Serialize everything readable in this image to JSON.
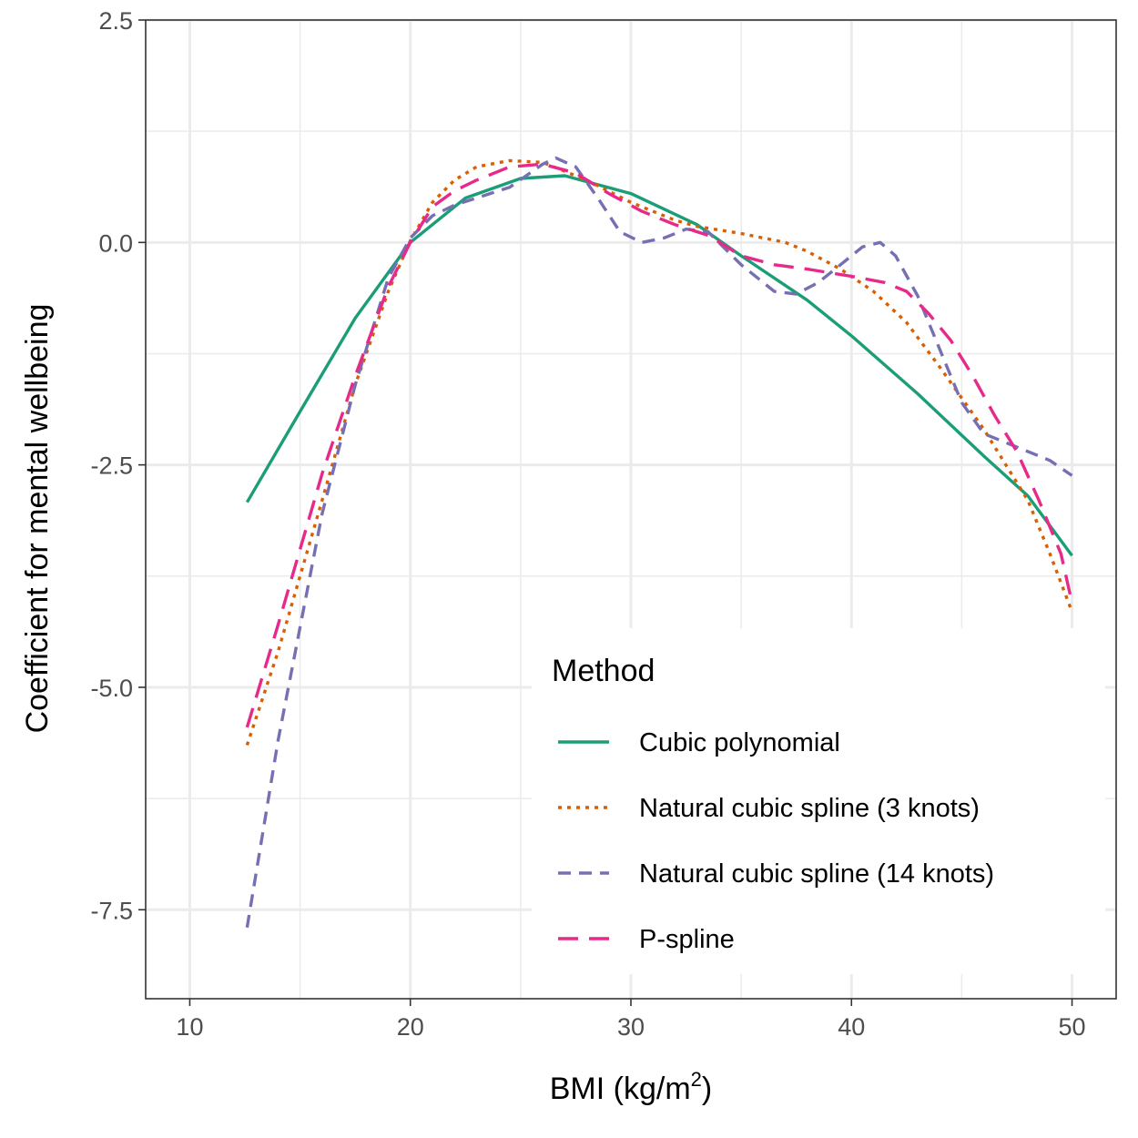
{
  "chart_data": {
    "type": "line",
    "xlabel_main": "BMI (kg/m",
    "xlabel_sup": "2",
    "xlabel_end": ")",
    "ylabel": "Coefficient for mental wellbeing",
    "xlim": [
      8,
      52
    ],
    "ylim": [
      -8.5,
      2.5
    ],
    "x_ticks": [
      10,
      20,
      30,
      40,
      50
    ],
    "x_tick_labels": [
      "10",
      "20",
      "30",
      "40",
      "50"
    ],
    "y_ticks": [
      2.5,
      0,
      -2.5,
      -5,
      -7.5
    ],
    "y_tick_labels": [
      "2.5",
      "0.0",
      "-2.5",
      "-5.0",
      "-7.5"
    ],
    "grid": true,
    "legend": {
      "title": "Method",
      "position": "bottom-right"
    },
    "series": [
      {
        "name": "Cubic polynomial",
        "color": "#1b9e77",
        "style": "solid",
        "points": [
          [
            12.6,
            -2.92
          ],
          [
            15,
            -1.9
          ],
          [
            17.5,
            -0.85
          ],
          [
            20,
            0.0
          ],
          [
            22.5,
            0.5
          ],
          [
            25,
            0.72
          ],
          [
            27,
            0.75
          ],
          [
            30,
            0.55
          ],
          [
            33,
            0.2
          ],
          [
            35,
            -0.15
          ],
          [
            38,
            -0.65
          ],
          [
            40,
            -1.05
          ],
          [
            43,
            -1.7
          ],
          [
            46,
            -2.4
          ],
          [
            48,
            -2.85
          ],
          [
            50,
            -3.52
          ]
        ]
      },
      {
        "name": "Natural cubic spline (3 knots)",
        "color": "#d95f02",
        "style": "dotted",
        "points": [
          [
            12.6,
            -5.65
          ],
          [
            14,
            -4.6
          ],
          [
            16,
            -2.9
          ],
          [
            17.5,
            -1.6
          ],
          [
            19,
            -0.55
          ],
          [
            20,
            0.02
          ],
          [
            21,
            0.45
          ],
          [
            22,
            0.7
          ],
          [
            23,
            0.85
          ],
          [
            24.5,
            0.92
          ],
          [
            26,
            0.9
          ],
          [
            28,
            0.7
          ],
          [
            30,
            0.45
          ],
          [
            32,
            0.25
          ],
          [
            33,
            0.18
          ],
          [
            35,
            0.1
          ],
          [
            37,
            0.0
          ],
          [
            38,
            -0.1
          ],
          [
            39.5,
            -0.3
          ],
          [
            41,
            -0.55
          ],
          [
            42.5,
            -0.9
          ],
          [
            44,
            -1.4
          ],
          [
            46,
            -2.1
          ],
          [
            48,
            -2.9
          ],
          [
            49,
            -3.5
          ],
          [
            50,
            -4.15
          ]
        ]
      },
      {
        "name": "Natural cubic spline (14 knots)",
        "color": "#7570b3",
        "style": "dashed",
        "points": [
          [
            12.6,
            -7.7
          ],
          [
            14,
            -5.6
          ],
          [
            16,
            -3.05
          ],
          [
            17.5,
            -1.6
          ],
          [
            19,
            -0.4
          ],
          [
            20,
            0.05
          ],
          [
            21,
            0.3
          ],
          [
            22,
            0.42
          ],
          [
            23,
            0.5
          ],
          [
            24.5,
            0.62
          ],
          [
            26,
            0.88
          ],
          [
            26.6,
            0.95
          ],
          [
            27.5,
            0.85
          ],
          [
            28.5,
            0.5
          ],
          [
            29.5,
            0.12
          ],
          [
            30.5,
            0.0
          ],
          [
            31.5,
            0.05
          ],
          [
            32.5,
            0.15
          ],
          [
            33.5,
            0.12
          ],
          [
            35,
            -0.25
          ],
          [
            36.5,
            -0.55
          ],
          [
            37.5,
            -0.58
          ],
          [
            38.5,
            -0.45
          ],
          [
            39.5,
            -0.25
          ],
          [
            40.5,
            -0.05
          ],
          [
            41.3,
            0.0
          ],
          [
            42,
            -0.15
          ],
          [
            43,
            -0.6
          ],
          [
            44,
            -1.2
          ],
          [
            45,
            -1.8
          ],
          [
            46,
            -2.15
          ],
          [
            47.5,
            -2.3
          ],
          [
            49,
            -2.45
          ],
          [
            50,
            -2.62
          ]
        ]
      },
      {
        "name": "P-spline",
        "color": "#e7298a",
        "style": "longdash",
        "points": [
          [
            12.6,
            -5.45
          ],
          [
            14,
            -4.3
          ],
          [
            16,
            -2.6
          ],
          [
            17.5,
            -1.5
          ],
          [
            19,
            -0.5
          ],
          [
            20,
            0.0
          ],
          [
            21,
            0.4
          ],
          [
            22,
            0.58
          ],
          [
            23,
            0.7
          ],
          [
            24.5,
            0.85
          ],
          [
            26,
            0.88
          ],
          [
            27.5,
            0.78
          ],
          [
            29,
            0.55
          ],
          [
            30.5,
            0.35
          ],
          [
            32,
            0.2
          ],
          [
            33.5,
            0.08
          ],
          [
            35,
            -0.15
          ],
          [
            36.5,
            -0.25
          ],
          [
            38,
            -0.3
          ],
          [
            40,
            -0.38
          ],
          [
            41.5,
            -0.45
          ],
          [
            42.5,
            -0.55
          ],
          [
            43.5,
            -0.8
          ],
          [
            44.5,
            -1.1
          ],
          [
            45.5,
            -1.5
          ],
          [
            46.5,
            -1.95
          ],
          [
            47.5,
            -2.35
          ],
          [
            48.5,
            -2.9
          ],
          [
            49.5,
            -3.5
          ],
          [
            50,
            -4.05
          ]
        ]
      }
    ]
  }
}
